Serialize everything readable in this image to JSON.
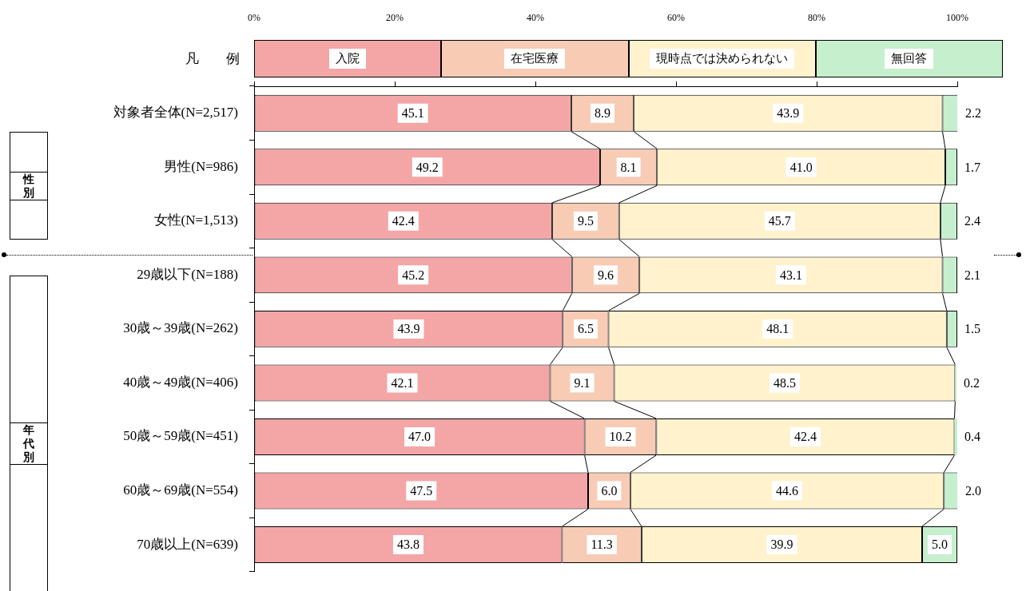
{
  "chart_data": {
    "type": "bar",
    "orientation": "horizontal",
    "stacked": true,
    "legend": "top",
    "legend_title": "凡　　例",
    "categories": [
      "対象者全体(N=2,517)",
      "男性(N=986)",
      "女性(N=1,513)",
      "29歳以下(N=188)",
      "30歳～39歳(N=262)",
      "40歳～49歳(N=406)",
      "50歳～59歳(N=451)",
      "60歳～69歳(N=554)",
      "70歳以上(N=639)"
    ],
    "series": [
      {
        "name": "入院",
        "color": "#f4a6a6",
        "values": [
          45.1,
          49.2,
          42.4,
          45.2,
          43.9,
          42.1,
          47.0,
          47.5,
          43.8
        ],
        "value_labels": [
          "45.1",
          "49.2",
          "42.4",
          "45.2",
          "43.9",
          "42.1",
          "47.0",
          "47.5",
          "43.8"
        ]
      },
      {
        "name": "在宅医療",
        "color": "#f8cbb4",
        "values": [
          8.9,
          8.1,
          9.5,
          9.6,
          6.5,
          9.1,
          10.2,
          6.0,
          11.3
        ],
        "value_labels": [
          "8.9",
          "8.1",
          "9.5",
          "9.6",
          "6.5",
          "9.1",
          "10.2",
          "6.0",
          "11.3"
        ]
      },
      {
        "name": "現時点では決められない",
        "color": "#fff2cc",
        "values": [
          43.9,
          41.0,
          45.7,
          43.1,
          48.1,
          48.5,
          42.4,
          44.6,
          39.9
        ],
        "value_labels": [
          "43.9",
          "41.0",
          "45.7",
          "43.1",
          "48.1",
          "48.5",
          "42.4",
          "44.6",
          "39.9"
        ]
      },
      {
        "name": "無回答",
        "color": "#c6efce",
        "values": [
          2.2,
          1.7,
          2.4,
          2.1,
          1.5,
          0.2,
          0.4,
          2.0,
          5.0
        ],
        "value_labels": [
          "2.2",
          "1.7",
          "2.4",
          "2.1",
          "1.5",
          "0.2",
          "0.4",
          "2.0",
          "5.0"
        ]
      }
    ],
    "xlim": [
      0,
      100
    ],
    "xticks": [
      {
        "value": 0,
        "label": "0%"
      },
      {
        "value": 20,
        "label": "20%"
      },
      {
        "value": 40,
        "label": "40%"
      },
      {
        "value": 60,
        "label": "60%"
      },
      {
        "value": 80,
        "label": "80%"
      },
      {
        "value": 100,
        "label": "100%"
      }
    ],
    "annotations": [
      "性別",
      "年代別"
    ]
  }
}
